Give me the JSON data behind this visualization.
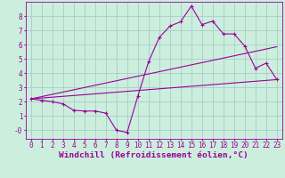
{
  "xlabel": "Windchill (Refroidissement éolien,°C)",
  "bg_color": "#cceedd",
  "grid_color": "#aacccc",
  "line_color": "#990099",
  "xlim": [
    -0.5,
    23.5
  ],
  "ylim": [
    -0.6,
    9.0
  ],
  "xticks": [
    0,
    1,
    2,
    3,
    4,
    5,
    6,
    7,
    8,
    9,
    10,
    11,
    12,
    13,
    14,
    15,
    16,
    17,
    18,
    19,
    20,
    21,
    22,
    23
  ],
  "yticks": [
    0,
    1,
    2,
    3,
    4,
    5,
    6,
    7,
    8
  ],
  "ytick_labels": [
    "-0",
    "1",
    "2",
    "3",
    "4",
    "5",
    "6",
    "7",
    "8"
  ],
  "line1_x": [
    0,
    1,
    2,
    3,
    4,
    5,
    6,
    7,
    8,
    9,
    10,
    11,
    12,
    13,
    14,
    15,
    16,
    17,
    18,
    19,
    20,
    21,
    22,
    23
  ],
  "line1_y": [
    2.2,
    2.1,
    2.0,
    1.85,
    1.4,
    1.35,
    1.35,
    1.2,
    0.0,
    -0.15,
    2.4,
    4.8,
    6.5,
    7.3,
    7.6,
    8.7,
    7.4,
    7.65,
    6.75,
    6.75,
    5.9,
    4.35,
    4.7,
    3.55
  ],
  "line2_x": [
    0,
    23
  ],
  "line2_y": [
    2.2,
    5.85
  ],
  "line3_x": [
    0,
    23
  ],
  "line3_y": [
    2.2,
    3.55
  ],
  "tick_fontsize": 5.5,
  "xlabel_fontsize": 6.8
}
